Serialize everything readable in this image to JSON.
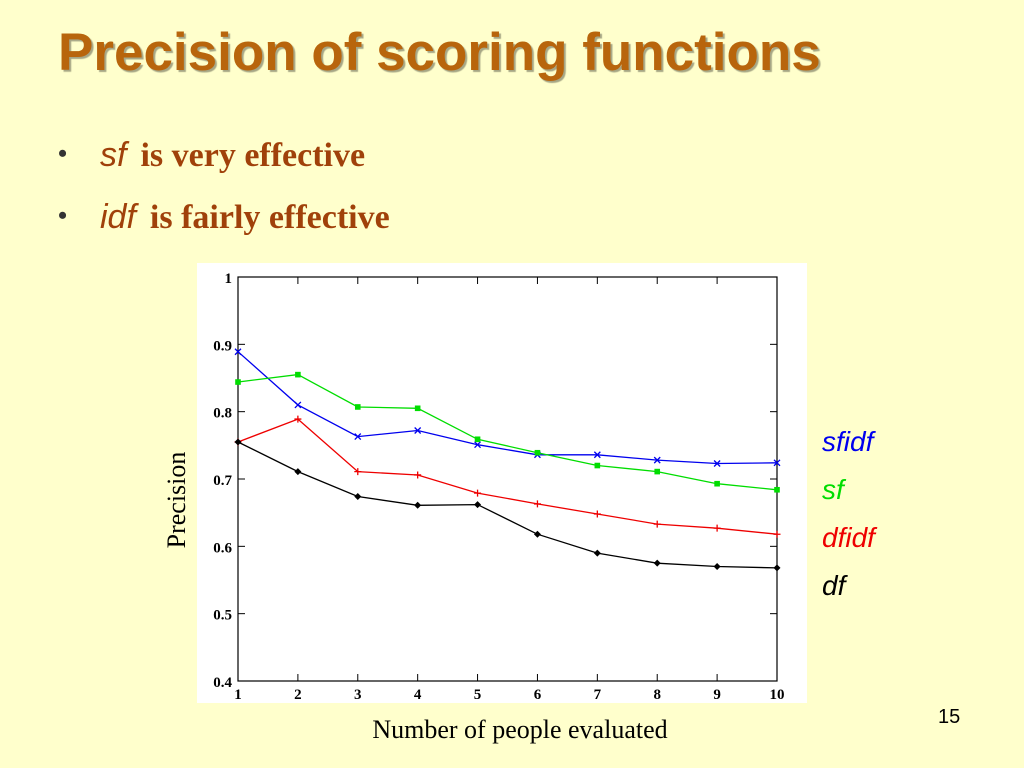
{
  "slide": {
    "title": "Precision of scoring functions",
    "bullets": [
      {
        "term": "sf",
        "text": "is very effective"
      },
      {
        "term": "idf",
        "text": "is fairly effective"
      }
    ],
    "bullet_symbol": "•",
    "page_number": "15"
  },
  "colors": {
    "title": "#B8650C",
    "bullet_text": "#A0410A",
    "background": "#FFFFCC"
  },
  "chart_data": {
    "type": "line",
    "xlabel": "Number of people evaluated",
    "ylabel": "Precision",
    "x": [
      1,
      2,
      3,
      4,
      5,
      6,
      7,
      8,
      9,
      10
    ],
    "xlim": [
      1,
      10
    ],
    "ylim": [
      0.4,
      1
    ],
    "xticks": [
      "1",
      "2",
      "3",
      "4",
      "5",
      "6",
      "7",
      "8",
      "9",
      "10"
    ],
    "yticks": [
      "0.4",
      "0.5",
      "0.6",
      "0.7",
      "0.8",
      "0.9",
      "1"
    ],
    "grid": false,
    "legend_position": "right",
    "series": [
      {
        "name": "sfidf",
        "color": "#0000EE",
        "marker": "x",
        "values": [
          0.889,
          0.81,
          0.763,
          0.772,
          0.751,
          0.736,
          0.736,
          0.728,
          0.723,
          0.724
        ]
      },
      {
        "name": "sf",
        "color": "#00DD00",
        "marker": "square",
        "values": [
          0.844,
          0.855,
          0.807,
          0.805,
          0.759,
          0.739,
          0.72,
          0.711,
          0.693,
          0.684
        ]
      },
      {
        "name": "dfidf",
        "color": "#EE0000",
        "marker": "plus",
        "values": [
          0.755,
          0.789,
          0.711,
          0.706,
          0.679,
          0.663,
          0.648,
          0.633,
          0.627,
          0.618
        ]
      },
      {
        "name": "df",
        "color": "#000000",
        "marker": "diamond",
        "values": [
          0.755,
          0.711,
          0.674,
          0.661,
          0.662,
          0.618,
          0.59,
          0.575,
          0.57,
          0.568
        ]
      }
    ]
  }
}
